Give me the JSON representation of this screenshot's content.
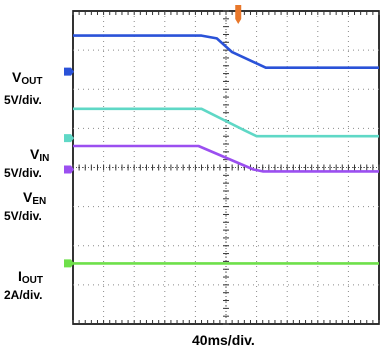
{
  "chart_data": {
    "type": "line",
    "time_scale": "40ms/div.",
    "divisions": {
      "x": 10,
      "y": 8
    },
    "xlim": [
      0,
      10
    ],
    "ylim": [
      0,
      8
    ],
    "grid": true,
    "trigger_marker_x": 5.4,
    "trigger_color": "#e8772a",
    "series": [
      {
        "main": "V",
        "sub": "OUT",
        "scale": "5V/div.",
        "color": "#2a52d8",
        "marker_color": "#2a52d8",
        "marker_y": 6.45,
        "x": [
          0,
          4.2,
          4.7,
          5.2,
          6.3,
          10
        ],
        "y": [
          7.37,
          7.37,
          7.3,
          6.95,
          6.55,
          6.55
        ]
      },
      {
        "main": "V",
        "sub": "IN",
        "scale": "5V/div.",
        "color": "#5fd8c6",
        "marker_color": "#5fd8c6",
        "marker_y": 4.75,
        "x": [
          0,
          4.2,
          5.6,
          6.0,
          10
        ],
        "y": [
          5.5,
          5.5,
          4.95,
          4.8,
          4.8
        ]
      },
      {
        "main": "V",
        "sub": "EN",
        "scale": "5V/div.",
        "color": "#9b4ff0",
        "marker_color": "#9b4ff0",
        "marker_y": 3.95,
        "x": [
          0,
          4.1,
          5.9,
          6.2,
          10
        ],
        "y": [
          4.55,
          4.55,
          3.95,
          3.9,
          3.9
        ]
      },
      {
        "main": "I",
        "sub": "OUT",
        "scale": "2A/div.",
        "color": "#6ee04a",
        "marker_color": "#6ee04a",
        "marker_y": 1.55,
        "x": [
          0,
          10
        ],
        "y": [
          1.55,
          1.55
        ]
      }
    ]
  }
}
